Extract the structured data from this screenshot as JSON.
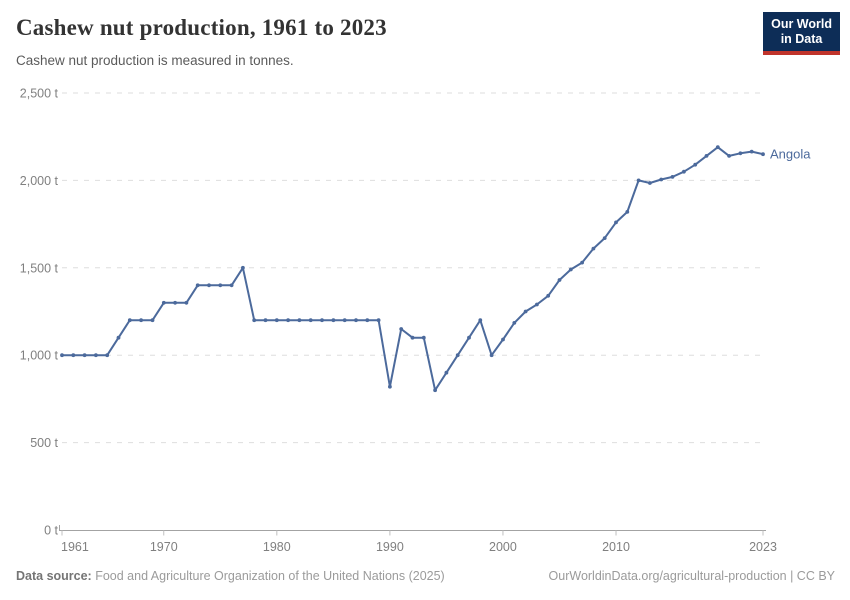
{
  "header": {
    "title": "Cashew nut production, 1961 to 2023",
    "subtitle": "Cashew nut production is measured in tonnes.",
    "logo": {
      "line1": "Our World",
      "line2": "in Data",
      "bg_color": "#0d2d57",
      "stripe_color": "#c0342b"
    }
  },
  "chart_data": {
    "type": "line",
    "title": "Cashew nut production, 1961 to 2023",
    "subtitle": "Cashew nut production is measured in tonnes.",
    "xlabel": "",
    "ylabel": "tonnes",
    "xlim": [
      1961,
      2023
    ],
    "ylim": [
      0,
      2500
    ],
    "grid": "horizontal-dashed",
    "legend_position": "end-of-line-label",
    "xticks": [
      1961,
      1970,
      1980,
      1990,
      2000,
      2010,
      2023
    ],
    "xtick_labels": [
      "1961",
      "1970",
      "1980",
      "1990",
      "2000",
      "2010",
      "2023"
    ],
    "yticks": [
      0,
      500,
      1000,
      1500,
      2000,
      2500
    ],
    "ytick_labels": [
      "0 t",
      "500 t",
      "1,000 t",
      "1,500 t",
      "2,000 t",
      "2,500 t"
    ],
    "x": [
      1961,
      1962,
      1963,
      1964,
      1965,
      1966,
      1967,
      1968,
      1969,
      1970,
      1971,
      1972,
      1973,
      1974,
      1975,
      1976,
      1977,
      1978,
      1979,
      1980,
      1981,
      1982,
      1983,
      1984,
      1985,
      1986,
      1987,
      1988,
      1989,
      1990,
      1991,
      1992,
      1993,
      1994,
      1995,
      1996,
      1997,
      1998,
      1999,
      2000,
      2001,
      2002,
      2003,
      2004,
      2005,
      2006,
      2007,
      2008,
      2009,
      2010,
      2011,
      2012,
      2013,
      2014,
      2015,
      2016,
      2017,
      2018,
      2019,
      2020,
      2021,
      2022,
      2023
    ],
    "series": [
      {
        "name": "Angola",
        "color": "#4c6a9c",
        "values": [
          1000,
          1000,
          1000,
          1000,
          1000,
          1100,
          1200,
          1200,
          1200,
          1300,
          1300,
          1300,
          1400,
          1400,
          1400,
          1400,
          1500,
          1200,
          1200,
          1200,
          1200,
          1200,
          1200,
          1200,
          1200,
          1200,
          1200,
          1200,
          1200,
          820,
          1150,
          1100,
          1100,
          800,
          900,
          1000,
          1100,
          1200,
          1000,
          1090,
          1185,
          1250,
          1290,
          1340,
          1430,
          1490,
          1530,
          1610,
          1670,
          1760,
          1820,
          2000,
          1985,
          2005,
          2020,
          2050,
          2090,
          2140,
          2190,
          2140,
          2155,
          2165,
          2150
        ]
      }
    ],
    "end_label": "Angola",
    "colors": {
      "grid": "#dedede",
      "axis": "#a3a3a3",
      "tick": "#c0c0c0",
      "tick_text": "#808080"
    }
  },
  "footer": {
    "source_label": "Data source:",
    "source_text": " Food and Agriculture Organization of the United Nations (2025)",
    "credit": "OurWorldinData.org/agricultural-production | CC BY"
  }
}
